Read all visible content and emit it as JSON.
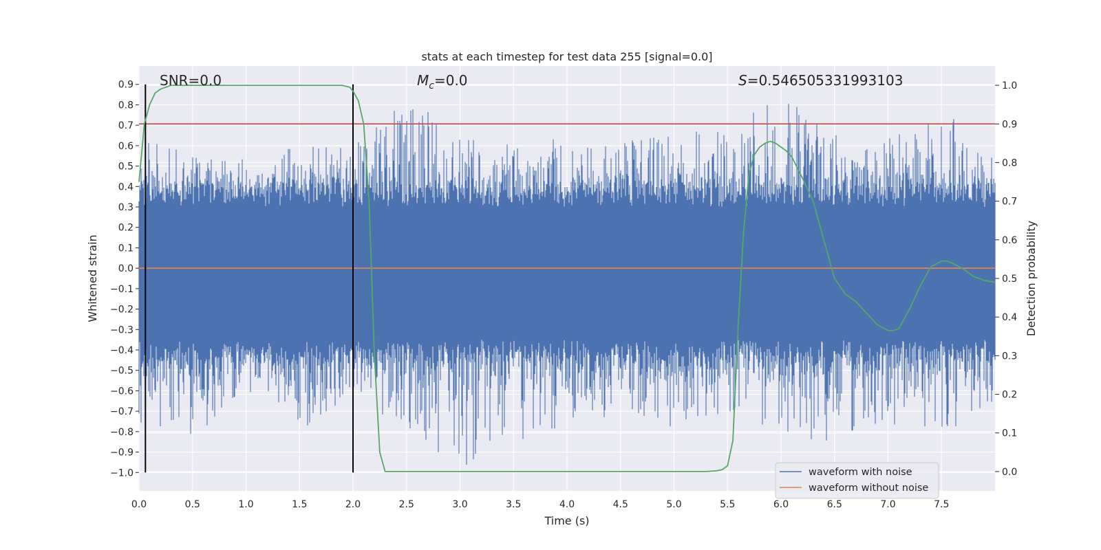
{
  "chart_data": {
    "type": "line",
    "title": "stats at each timestep for test data 255 [signal=0.0]",
    "xlabel": "Time (s)",
    "ylabel": "Whitened strain",
    "y2label": "Detection probability",
    "xlim": [
      0.0,
      8.0
    ],
    "ylim": [
      -1.09,
      0.99
    ],
    "y2lim": [
      -0.05,
      1.05
    ],
    "xticks": [
      "0.0",
      "0.5",
      "1.0",
      "1.5",
      "2.0",
      "2.5",
      "3.0",
      "3.5",
      "4.0",
      "4.5",
      "5.0",
      "5.5",
      "6.0",
      "6.5",
      "7.0",
      "7.5"
    ],
    "yticks": [
      "−1.0",
      "−0.9",
      "−0.8",
      "−0.7",
      "−0.6",
      "−0.5",
      "−0.4",
      "−0.3",
      "−0.2",
      "−0.1",
      "0.0",
      "0.1",
      "0.2",
      "0.3",
      "0.4",
      "0.5",
      "0.6",
      "0.7",
      "0.8",
      "0.9"
    ],
    "y2ticks": [
      "0.0",
      "0.1",
      "0.2",
      "0.3",
      "0.4",
      "0.5",
      "0.6",
      "0.7",
      "0.8",
      "0.9",
      "1.0"
    ],
    "grid": true,
    "legend_position": "lower-right",
    "legend": [
      "waveform with noise",
      "waveform without noise"
    ],
    "annotations": {
      "snr": "SNR=0.0",
      "mc_symbol": "M",
      "mc_sub": "c",
      "mc_value": "=0.0",
      "s_symbol": "S",
      "s_value": "=0.546505331993103"
    },
    "series": [
      {
        "name": "waveform with noise",
        "axis": "left",
        "color": "#4c72b0",
        "note": "dense whitened noise, approx. range [-1.0, 0.9]",
        "sampled_x": [
          0.0,
          0.5,
          1.0,
          1.5,
          2.0,
          2.5,
          3.0,
          3.5,
          4.0,
          4.5,
          5.0,
          5.5,
          6.0,
          6.5,
          7.0,
          7.5,
          8.0
        ],
        "sampled_envelope_top": [
          0.65,
          0.55,
          0.55,
          0.6,
          0.6,
          0.85,
          0.65,
          0.6,
          0.65,
          0.62,
          0.65,
          0.7,
          0.85,
          0.65,
          0.65,
          0.78,
          0.6
        ],
        "sampled_envelope_bottom": [
          -0.79,
          -0.85,
          -0.6,
          -0.82,
          -0.6,
          -0.81,
          -1.0,
          -0.85,
          -0.8,
          -0.7,
          -0.78,
          -0.7,
          -0.8,
          -0.89,
          -0.76,
          -0.8,
          -0.7
        ]
      },
      {
        "name": "waveform without noise",
        "axis": "left",
        "color": "#dd8452",
        "x": [
          0.0,
          8.0
        ],
        "values": [
          0.0,
          0.0
        ]
      },
      {
        "name": "detection probability",
        "axis": "right",
        "color": "#55a868",
        "x": [
          0.0,
          0.05,
          0.1,
          0.15,
          0.2,
          0.3,
          0.4,
          0.5,
          0.8,
          1.2,
          1.6,
          1.9,
          1.97,
          2.0,
          2.05,
          2.1,
          2.15,
          2.2,
          2.25,
          2.3,
          2.5,
          3.0,
          4.0,
          5.0,
          5.3,
          5.4,
          5.45,
          5.5,
          5.55,
          5.6,
          5.65,
          5.7,
          5.75,
          5.8,
          5.85,
          5.9,
          5.95,
          6.0,
          6.05,
          6.1,
          6.2,
          6.3,
          6.4,
          6.5,
          6.6,
          6.7,
          6.8,
          6.9,
          7.0,
          7.05,
          7.1,
          7.2,
          7.3,
          7.4,
          7.5,
          7.55,
          7.6,
          7.7,
          7.8,
          7.9,
          8.0
        ],
        "values": [
          0.75,
          0.9,
          0.95,
          0.98,
          0.99,
          1.0,
          1.0,
          1.0,
          1.0,
          1.0,
          1.0,
          1.0,
          0.995,
          0.985,
          0.96,
          0.9,
          0.7,
          0.3,
          0.05,
          0.0,
          0.0,
          0.0,
          0.0,
          0.0,
          0.0,
          0.002,
          0.005,
          0.015,
          0.08,
          0.38,
          0.62,
          0.77,
          0.82,
          0.84,
          0.85,
          0.855,
          0.85,
          0.84,
          0.83,
          0.815,
          0.76,
          0.7,
          0.6,
          0.5,
          0.46,
          0.44,
          0.41,
          0.38,
          0.365,
          0.365,
          0.37,
          0.42,
          0.48,
          0.53,
          0.545,
          0.545,
          0.54,
          0.525,
          0.505,
          0.495,
          0.49
        ]
      },
      {
        "name": "threshold",
        "axis": "right",
        "color": "#c44e52",
        "x": [
          0.0,
          8.0
        ],
        "values": [
          0.9,
          0.9
        ]
      }
    ],
    "vertical_markers": [
      0.06,
      2.0
    ]
  }
}
